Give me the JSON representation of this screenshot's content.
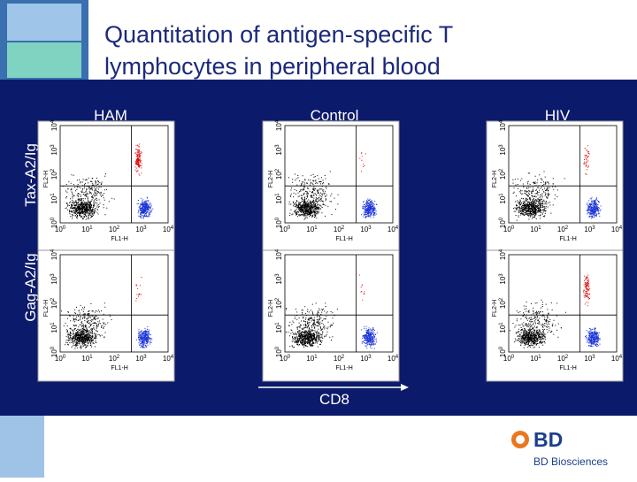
{
  "header": {
    "title_lines": [
      "Quantitation of antigen-specific T",
      "lymphocytes in peripheral blood"
    ]
  },
  "columns": [
    "HAM",
    "Control",
    "HIV"
  ],
  "rows": [
    "Tax-A2/Ig",
    "Gag-A2/Ig"
  ],
  "x_arrow_label": "CD8",
  "plot_axes": {
    "x_label": "FL1-H",
    "y_label": "FL2-H",
    "ticks": [
      {
        "base": "10",
        "exp": "0"
      },
      {
        "base": "10",
        "exp": "1"
      },
      {
        "base": "10",
        "exp": "2"
      },
      {
        "base": "10",
        "exp": "3"
      },
      {
        "base": "10",
        "exp": "4"
      }
    ]
  },
  "logo": {
    "mark": "BD",
    "name": "BD Biosciences"
  }
}
